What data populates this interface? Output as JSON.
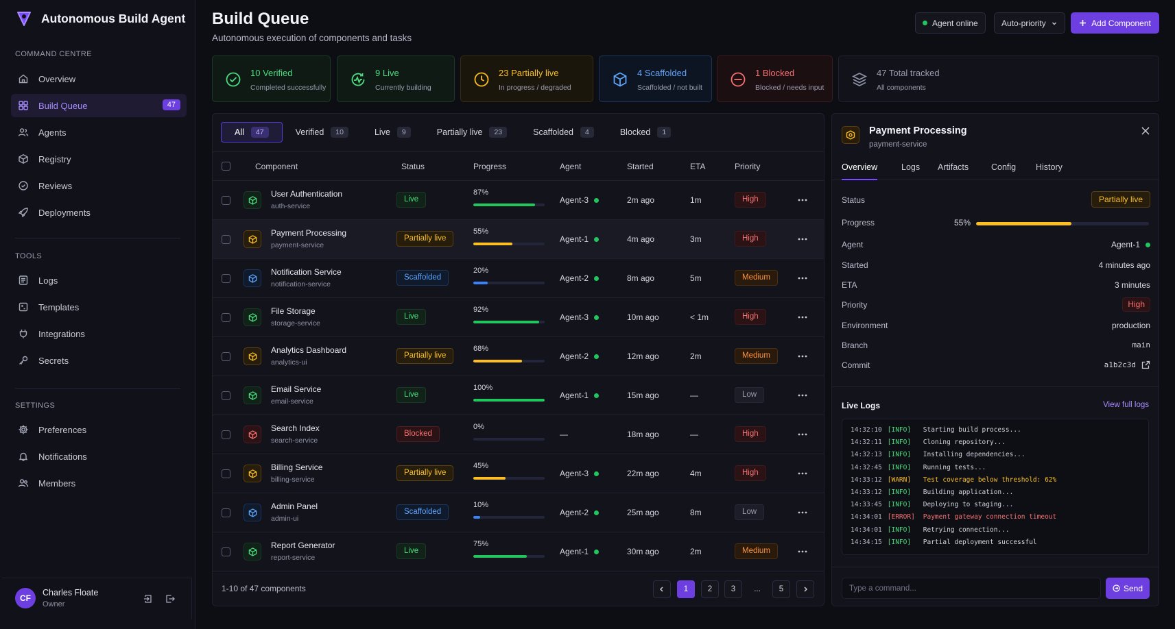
{
  "app": {
    "title": "Autonomous Build Agent"
  },
  "sidebar": {
    "section_command": "COMMAND CENTRE",
    "command_items": [
      {
        "label": "Overview",
        "icon": "home-icon"
      },
      {
        "label": "Build Queue",
        "icon": "grid-icon",
        "count": "47",
        "active": true
      },
      {
        "label": "Agents",
        "icon": "users-icon"
      },
      {
        "label": "Registry",
        "icon": "box-icon"
      },
      {
        "label": "Reviews",
        "icon": "check-circle-icon"
      },
      {
        "label": "Deployments",
        "icon": "rocket-icon"
      }
    ],
    "section_tools": "TOOLS",
    "tools_items": [
      {
        "label": "Logs",
        "icon": "list-icon"
      },
      {
        "label": "Templates",
        "icon": "template-icon"
      },
      {
        "label": "Integrations",
        "icon": "plug-icon"
      },
      {
        "label": "Secrets",
        "icon": "key-icon"
      }
    ],
    "section_settings": "SETTINGS",
    "settings_items": [
      {
        "label": "Preferences",
        "icon": "gear-icon"
      },
      {
        "label": "Notifications",
        "icon": "bell-icon"
      },
      {
        "label": "Members",
        "icon": "members-icon"
      }
    ],
    "user": {
      "initials": "CF",
      "name": "Charles Floate",
      "role": "Owner"
    }
  },
  "header": {
    "title": "Build Queue",
    "subtitle": "Autonomous execution of components and tasks",
    "agent_status": "Agent online",
    "priority_select": "Auto-priority",
    "add_button": "Add Component"
  },
  "stats": [
    {
      "value": "10",
      "label": "Verified",
      "desc": "Completed successfully",
      "color": "#4ade80"
    },
    {
      "value": "9",
      "label": "Live",
      "desc": "Currently building",
      "color": "#4ade80"
    },
    {
      "value": "23",
      "label": "Partially live",
      "desc": "In progress / degraded",
      "color": "#fbbf24"
    },
    {
      "value": "4",
      "label": "Scaffolded",
      "desc": "Scaffolded / not built",
      "color": "#60a5fa"
    },
    {
      "value": "1",
      "label": "Blocked",
      "desc": "Blocked / needs input",
      "color": "#f87171"
    },
    {
      "value": "47",
      "label": "Total tracked",
      "desc": "All components",
      "color": "#9a9cae"
    }
  ],
  "filter_tabs": [
    {
      "label": "All",
      "count": "47"
    },
    {
      "label": "Verified",
      "count": "10"
    },
    {
      "label": "Live",
      "count": "9"
    },
    {
      "label": "Partially live",
      "count": "23"
    },
    {
      "label": "Scaffolded",
      "count": "4"
    },
    {
      "label": "Blocked",
      "count": "1"
    }
  ],
  "table": {
    "columns": [
      "Component",
      "Status",
      "Progress",
      "Agent",
      "Started",
      "ETA",
      "Priority"
    ],
    "rows": [
      {
        "name": "User Authentication",
        "service": "auth-service",
        "status": "Live",
        "progress": 87,
        "progress_label": "87%",
        "agent": "Agent-3",
        "started": "2m ago",
        "eta": "1m",
        "priority": "High"
      },
      {
        "name": "Payment Processing",
        "service": "payment-service",
        "status": "Partially live",
        "progress": 55,
        "progress_label": "55%",
        "agent": "Agent-1",
        "started": "4m ago",
        "eta": "3m",
        "priority": "High"
      },
      {
        "name": "Notification Service",
        "service": "notification-service",
        "status": "Scaffolded",
        "progress": 20,
        "progress_label": "20%",
        "agent": "Agent-2",
        "started": "8m ago",
        "eta": "5m",
        "priority": "Medium"
      },
      {
        "name": "File Storage",
        "service": "storage-service",
        "status": "Live",
        "progress": 92,
        "progress_label": "92%",
        "agent": "Agent-3",
        "started": "10m ago",
        "eta": "< 1m",
        "priority": "High"
      },
      {
        "name": "Analytics Dashboard",
        "service": "analytics-ui",
        "status": "Partially live",
        "progress": 68,
        "progress_label": "68%",
        "agent": "Agent-2",
        "started": "12m ago",
        "eta": "2m",
        "priority": "Medium"
      },
      {
        "name": "Email Service",
        "service": "email-service",
        "status": "Live",
        "progress": 100,
        "progress_label": "100%",
        "agent": "Agent-1",
        "started": "15m ago",
        "eta": "—",
        "priority": "Low"
      },
      {
        "name": "Search Index",
        "service": "search-service",
        "status": "Blocked",
        "progress": 0,
        "progress_label": "0%",
        "agent": "—",
        "started": "18m ago",
        "eta": "—",
        "priority": "High"
      },
      {
        "name": "Billing Service",
        "service": "billing-service",
        "status": "Partially live",
        "progress": 45,
        "progress_label": "45%",
        "agent": "Agent-3",
        "started": "22m ago",
        "eta": "4m",
        "priority": "High"
      },
      {
        "name": "Admin Panel",
        "service": "admin-ui",
        "status": "Scaffolded",
        "progress": 10,
        "progress_label": "10%",
        "agent": "Agent-2",
        "started": "25m ago",
        "eta": "8m",
        "priority": "Low"
      },
      {
        "name": "Report Generator",
        "service": "report-service",
        "status": "Live",
        "progress": 75,
        "progress_label": "75%",
        "agent": "Agent-1",
        "started": "30m ago",
        "eta": "2m",
        "priority": "Medium"
      }
    ],
    "footer": "1-10 of 47 components",
    "pages": [
      "1",
      "2",
      "3",
      "...",
      "5"
    ]
  },
  "detail": {
    "title": "Payment Processing",
    "service": "payment-service",
    "tabs": [
      "Overview",
      "Logs",
      "Artifacts",
      "Config",
      "History"
    ],
    "status": "Partially live",
    "progress": 55,
    "progress_label": "55%",
    "labels": {
      "status": "Status",
      "progress": "Progress",
      "agent": "Agent",
      "started": "Started",
      "eta": "ETA",
      "priority": "Priority",
      "environment": "Environment",
      "branch": "Branch",
      "commit": "Commit"
    },
    "agent": "Agent-1",
    "started": "4 minutes ago",
    "eta": "3 minutes",
    "priority": "High",
    "environment": "production",
    "branch": "main",
    "commit": "a1b2c3d",
    "live_logs_title": "Live Logs",
    "view_full_logs": "View full logs",
    "logs": [
      {
        "ts": "14:32:10",
        "level": "[INFO]",
        "msg": "Starting build process..."
      },
      {
        "ts": "14:32:11",
        "level": "[INFO]",
        "msg": "Cloning repository..."
      },
      {
        "ts": "14:32:13",
        "level": "[INFO]",
        "msg": "Installing dependencies..."
      },
      {
        "ts": "14:32:45",
        "level": "[INFO]",
        "msg": "Running tests..."
      },
      {
        "ts": "14:33:12",
        "level": "[WARN]",
        "msg": "Test coverage below threshold: 62%"
      },
      {
        "ts": "14:33:12",
        "level": "[INFO]",
        "msg": "Building application..."
      },
      {
        "ts": "14:33:45",
        "level": "[INFO]",
        "msg": "Deploying to staging..."
      },
      {
        "ts": "14:34:01",
        "level": "[ERROR]",
        "msg": "Payment gateway connection timeout"
      },
      {
        "ts": "14:34:01",
        "level": "[INFO]",
        "msg": "Retrying connection..."
      },
      {
        "ts": "14:34:15",
        "level": "[INFO]",
        "msg": "Partial deployment successful"
      }
    ],
    "command_placeholder": "Type a command...",
    "send_label": "Send"
  }
}
